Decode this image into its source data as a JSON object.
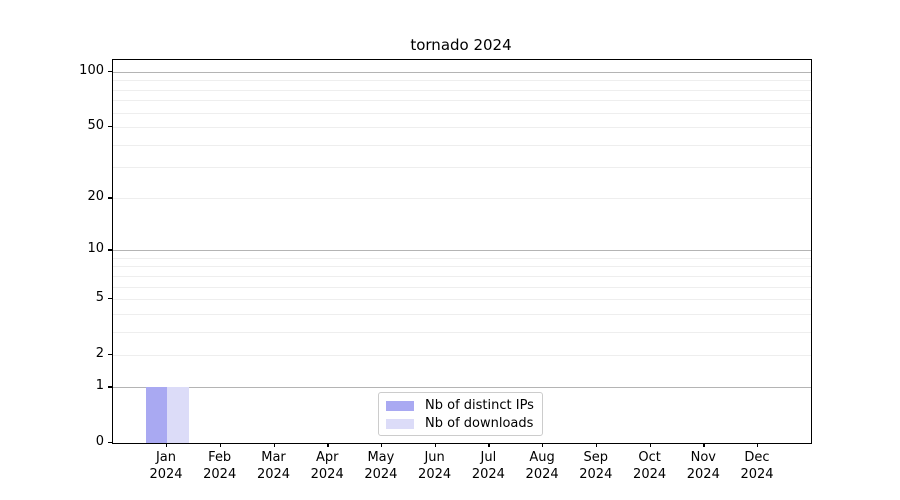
{
  "chart_data": {
    "type": "bar",
    "title": "tornado 2024",
    "categories": [
      "Jan 2024",
      "Feb 2024",
      "Mar 2024",
      "Apr 2024",
      "May 2024",
      "Jun 2024",
      "Jul 2024",
      "Aug 2024",
      "Sep 2024",
      "Oct 2024",
      "Nov 2024",
      "Dec 2024"
    ],
    "x_tick_line1": [
      "Jan",
      "Feb",
      "Mar",
      "Apr",
      "May",
      "Jun",
      "Jul",
      "Aug",
      "Sep",
      "Oct",
      "Nov",
      "Dec"
    ],
    "x_tick_line2": "2024",
    "series": [
      {
        "name": "Nb of distinct IPs",
        "color": "#a9a9f2",
        "values": [
          1,
          0,
          0,
          0,
          0,
          0,
          0,
          0,
          0,
          0,
          0,
          0
        ]
      },
      {
        "name": "Nb of downloads",
        "color": "#dcdcf8",
        "values": [
          1,
          0,
          0,
          0,
          0,
          0,
          0,
          0,
          0,
          0,
          0,
          0
        ]
      }
    ],
    "xlabel": "",
    "ylabel": "",
    "y_scale": "log10(1+x)",
    "ylim": [
      0,
      116
    ],
    "y_tick_values": [
      0,
      1,
      2,
      5,
      10,
      20,
      50,
      100
    ],
    "y_tick_labels": [
      "0",
      "1",
      "2",
      "5",
      "10",
      "20",
      "50",
      "100"
    ],
    "y_major_gridlines": [
      1,
      10,
      100
    ],
    "y_minor_gridlines": [
      2,
      3,
      4,
      5,
      6,
      7,
      8,
      9,
      20,
      30,
      40,
      50,
      60,
      70,
      80,
      90
    ],
    "grid": true,
    "legend_position": "lower center"
  },
  "legend": {
    "entries": [
      {
        "label": "Nb of distinct IPs",
        "color": "#a9a9f2"
      },
      {
        "label": "Nb of downloads",
        "color": "#dcdcf8"
      }
    ]
  },
  "colors": {
    "background": "#ffffff",
    "spine": "#000000",
    "major_grid": "#b4b4b4",
    "minor_grid": "#eeeeee",
    "legend_border": "#cccccc",
    "text": "#000000"
  }
}
